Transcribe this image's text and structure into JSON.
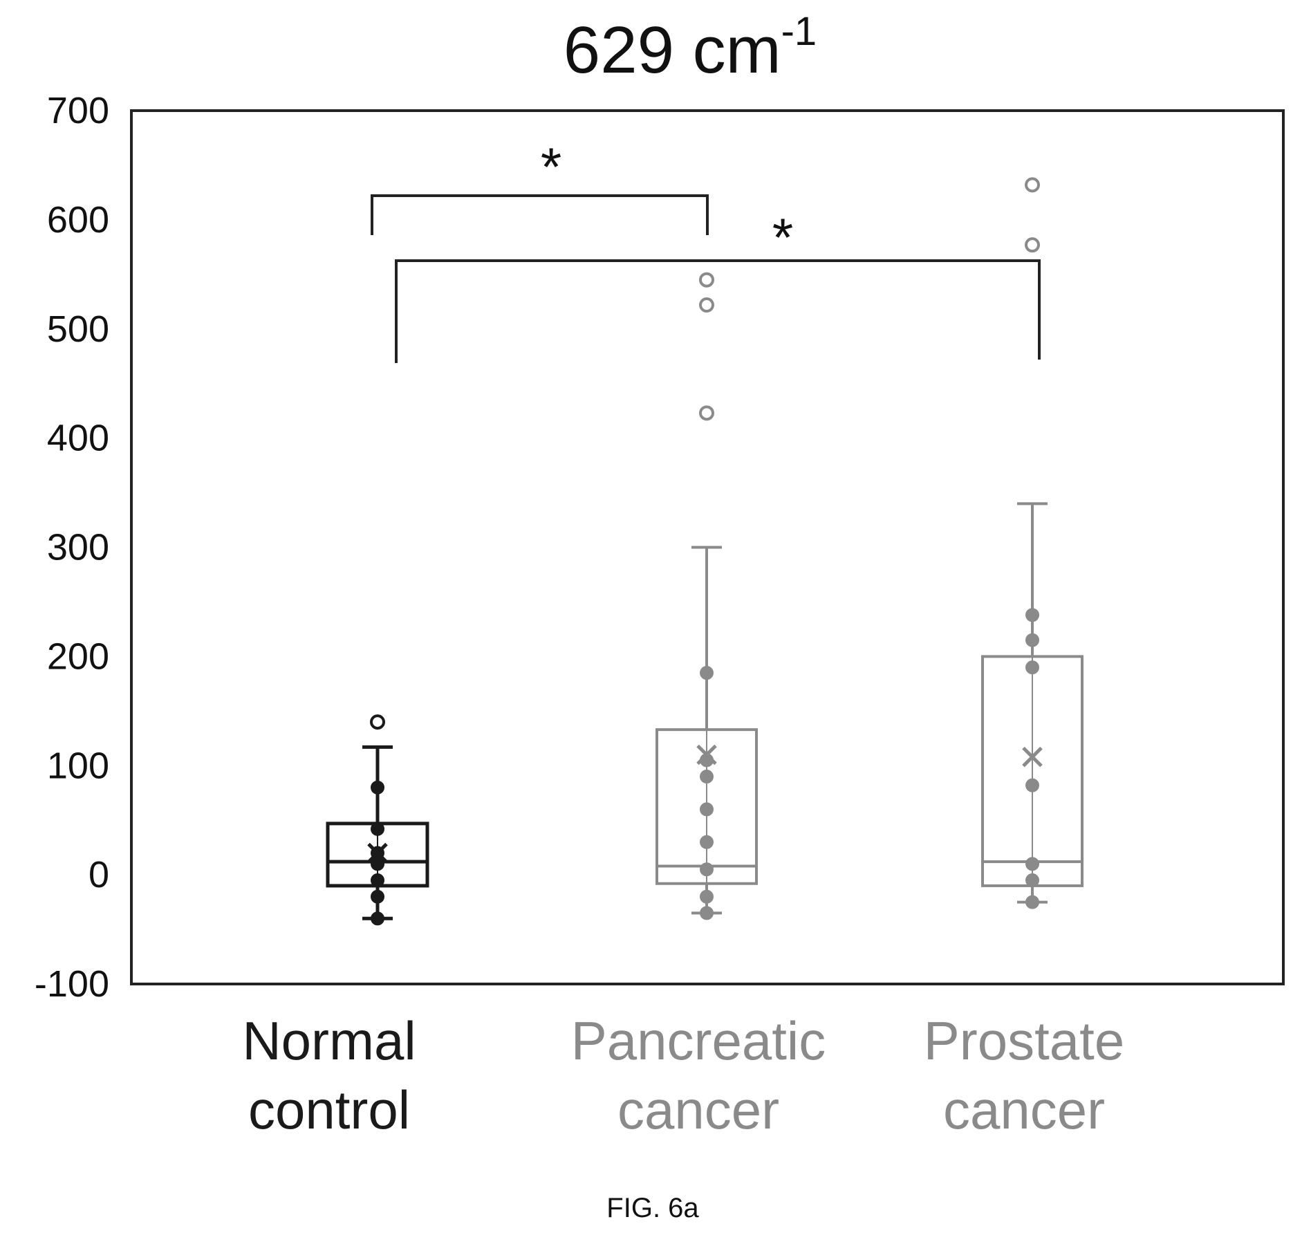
{
  "chart_data": {
    "type": "box",
    "title_main": "629 cm",
    "title_sup": "-1",
    "ylim": [
      -100,
      700
    ],
    "yticks": [
      700,
      600,
      500,
      400,
      300,
      200,
      100,
      0,
      -100
    ],
    "grid": false,
    "groups": [
      {
        "label_lines": [
          "Normal",
          "control"
        ],
        "color": "#1a1a1a",
        "whisker_min": -40,
        "q1": -10,
        "median": 12,
        "q3": 47,
        "whisker_max": 117,
        "mean": 20,
        "points": [
          -40,
          -20,
          -5,
          10,
          20,
          42,
          80
        ],
        "outliers": [
          140
        ]
      },
      {
        "label_lines": [
          "Pancreatic",
          "cancer"
        ],
        "color": "#8a8a8a",
        "whisker_min": -35,
        "q1": -8,
        "median": 8,
        "q3": 133,
        "whisker_max": 300,
        "mean": 110,
        "points": [
          -35,
          -20,
          5,
          30,
          60,
          90,
          105,
          185
        ],
        "outliers": [
          423,
          522,
          545
        ]
      },
      {
        "label_lines": [
          "Prostate",
          "cancer"
        ],
        "color": "#8a8a8a",
        "whisker_min": -25,
        "q1": -10,
        "median": 12,
        "q3": 200,
        "whisker_max": 340,
        "mean": 108,
        "points": [
          -25,
          -5,
          10,
          82,
          190,
          215,
          238
        ],
        "outliers": [
          577,
          632
        ]
      }
    ],
    "annotations": [
      {
        "text": "*",
        "from_group": 0,
        "to_group": 1,
        "level": 625
      },
      {
        "text": "*",
        "from_group": 0,
        "to_group": 2,
        "level": 565
      }
    ]
  },
  "caption": "FIG. 6a"
}
